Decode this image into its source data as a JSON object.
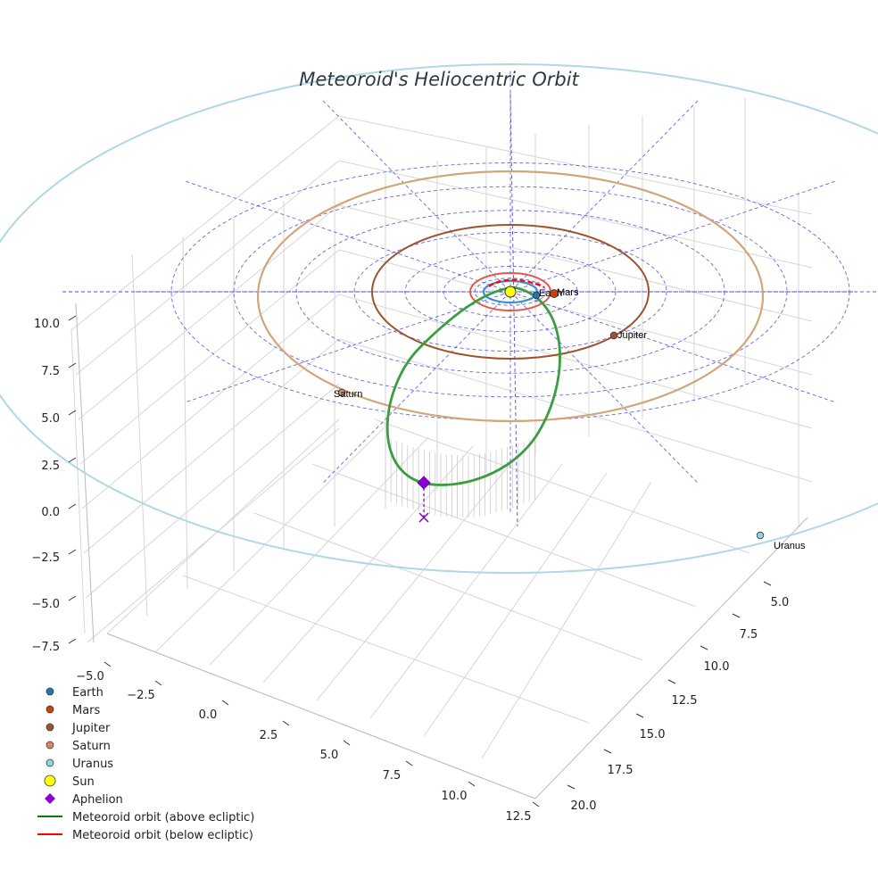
{
  "chart_data": {
    "type": "3d-orbit-plot",
    "title": "Meteoroid's Heliocentric Orbit",
    "axes": {
      "x_ticks": [
        "−5.0",
        "−2.5",
        "0.0",
        "2.5",
        "5.0",
        "7.5",
        "10.0",
        "12.5"
      ],
      "y_ticks": [
        "5.0",
        "7.5",
        "10.0",
        "12.5",
        "15.0",
        "17.5",
        "20.0"
      ],
      "z_ticks": [
        "10.0",
        "7.5",
        "5.0",
        "2.5",
        "0.0",
        "−2.5",
        "−5.0",
        "−7.5"
      ],
      "xlim": [
        -5.0,
        12.5
      ],
      "ylim": [
        5.0,
        20.0
      ],
      "zlim": [
        -7.5,
        10.0
      ]
    },
    "planets": [
      {
        "name": "Earth",
        "orbit_radius_au": 1.0,
        "color": "#1f77b4",
        "orbit_color": "#3a8fd0"
      },
      {
        "name": "Mars",
        "orbit_radius_au": 1.52,
        "color": "#c8420c",
        "orbit_color": "#e05a4a"
      },
      {
        "name": "Jupiter",
        "orbit_radius_au": 5.2,
        "color": "#a0522d",
        "orbit_color": "#a0522d"
      },
      {
        "name": "Saturn",
        "orbit_radius_au": 9.5,
        "color": "#d2996b",
        "orbit_color": "#d2a679"
      },
      {
        "name": "Uranus",
        "orbit_radius_au": 19.2,
        "color": "#8fd3e0",
        "orbit_color": "#add8e6"
      }
    ],
    "sun": {
      "name": "Sun",
      "color": "#ffff00"
    },
    "aphelion": {
      "name": "Aphelion",
      "color": "#8a00d4"
    },
    "meteoroid_orbit": {
      "above_color": "#2ca02c",
      "below_color": "#ff0000"
    },
    "legend": [
      {
        "label": "Earth",
        "marker": "circle",
        "color": "#1f77b4"
      },
      {
        "label": "Mars",
        "marker": "circle",
        "color": "#c8420c"
      },
      {
        "label": "Jupiter",
        "marker": "circle",
        "color": "#a0522d"
      },
      {
        "label": "Saturn",
        "marker": "circle",
        "color": "#cd8d60"
      },
      {
        "label": "Uranus",
        "marker": "circle",
        "color": "#8fd3e0"
      },
      {
        "label": "Sun",
        "marker": "circle-large",
        "color": "#ffff00"
      },
      {
        "label": "Aphelion",
        "marker": "diamond",
        "color": "#8a00d4"
      },
      {
        "label": "Meteoroid orbit (above ecliptic)",
        "marker": "line",
        "color": "#008000"
      },
      {
        "label": "Meteoroid orbit (below ecliptic)",
        "marker": "line",
        "color": "#ff0000"
      }
    ]
  }
}
